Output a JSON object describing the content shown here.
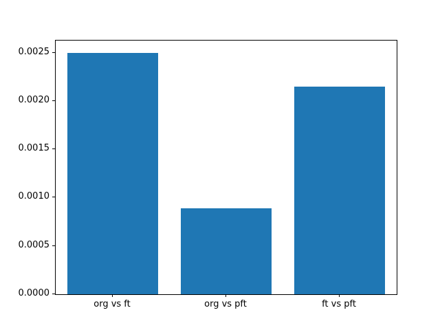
{
  "chart_data": {
    "type": "bar",
    "categories": [
      "org vs ft",
      "org vs pft",
      "ft vs pft"
    ],
    "values": [
      0.0025,
      0.00089,
      0.00215
    ],
    "title": "",
    "xlabel": "",
    "ylabel": "",
    "ylim": [
      0,
      0.002625
    ],
    "ytick_values": [
      0.0,
      0.0005,
      0.001,
      0.0015,
      0.002,
      0.0025
    ],
    "ytick_labels": [
      "0.0000",
      "0.0005",
      "0.0010",
      "0.0015",
      "0.0020",
      "0.0025"
    ],
    "bar_color": "#1f77b4",
    "bar_width_fraction": 0.8,
    "grid": false,
    "legend": null,
    "background_color": "#ffffff",
    "spine_color": "#000000"
  }
}
